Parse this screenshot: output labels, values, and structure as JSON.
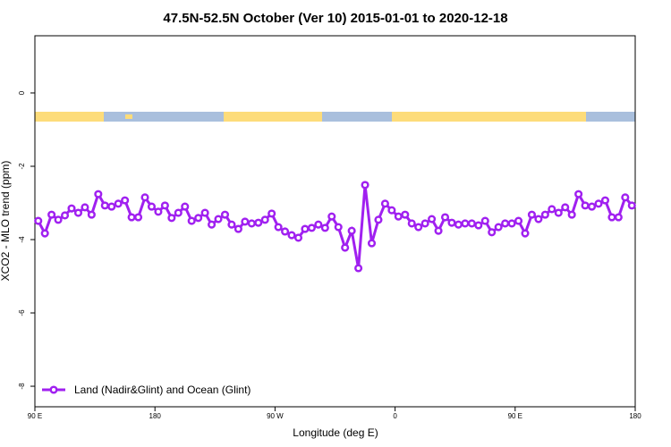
{
  "chart_data": {
    "type": "line",
    "title": "47.5N-52.5N October (Ver 10)   2015-01-01 to 2020-12-18",
    "x_label": "Longitude (deg E)",
    "y_label": "XCO2 - MLO trend (ppm)",
    "x": [
      92.5,
      97.5,
      102.5,
      107.5,
      112.5,
      117.5,
      122.5,
      127.5,
      132.5,
      137.5,
      142.5,
      147.5,
      152.5,
      157.5,
      162.5,
      167.5,
      172.5,
      177.5,
      182.5,
      187.5,
      192.5,
      197.5,
      202.5,
      207.5,
      212.5,
      217.5,
      222.5,
      227.5,
      232.5,
      237.5,
      242.5,
      247.5,
      252.5,
      257.5,
      262.5,
      267.5,
      272.5,
      277.5,
      282.5,
      287.5,
      292.5,
      297.5,
      302.5,
      307.5,
      312.5,
      317.5,
      322.5,
      327.5,
      332.5,
      337.5,
      342.5,
      347.5,
      352.5,
      357.5,
      362.5,
      367.5,
      372.5,
      377.5,
      382.5,
      387.5,
      392.5,
      397.5,
      402.5,
      407.5,
      412.5,
      417.5,
      422.5,
      427.5,
      432.5,
      437.5,
      442.5,
      447.5,
      452.5,
      457.5,
      462.5,
      467.5,
      472.5,
      477.5,
      482.5,
      487.5,
      492.5,
      497.5,
      502.5,
      507.5,
      512.5,
      517.5,
      522.5,
      527.5,
      532.5,
      537.5
    ],
    "series": [
      {
        "name": "Land (Nadir&Glint) and Ocean (Glint)",
        "color": "#a020f0",
        "values": [
          -3.49,
          -3.83,
          -3.32,
          -3.46,
          -3.34,
          -3.15,
          -3.27,
          -3.12,
          -3.32,
          -2.76,
          -3.07,
          -3.1,
          -3.02,
          -2.93,
          -3.39,
          -3.39,
          -2.85,
          -3.1,
          -3.24,
          -3.07,
          -3.41,
          -3.27,
          -3.1,
          -3.49,
          -3.41,
          -3.27,
          -3.59,
          -3.44,
          -3.32,
          -3.59,
          -3.71,
          -3.51,
          -3.56,
          -3.54,
          -3.46,
          -3.29,
          -3.66,
          -3.78,
          -3.88,
          -3.95,
          -3.71,
          -3.68,
          -3.59,
          -3.68,
          -3.37,
          -3.66,
          -4.22,
          -3.76,
          -4.78,
          -2.51,
          -4.1,
          -3.46,
          -3.02,
          -3.2,
          -3.37,
          -3.32,
          -3.56,
          -3.66,
          -3.56,
          -3.44,
          -3.76,
          -3.39,
          -3.54,
          -3.59,
          -3.56,
          -3.56,
          -3.61,
          -3.49,
          -3.8,
          -3.66,
          -3.56,
          -3.56,
          -3.49,
          -3.83,
          -3.32,
          -3.44,
          -3.32,
          -3.17,
          -3.27,
          -3.12,
          -3.32,
          -2.76,
          -3.07,
          -3.1,
          -3.02,
          -2.93,
          -3.39,
          -3.39,
          -2.85,
          -3.07
        ]
      }
    ],
    "xlim": [
      90,
      540
    ],
    "xticks": [
      {
        "value": 90,
        "label": "90 E"
      },
      180,
      {
        "value": 270,
        "label": "90 W"
      },
      {
        "value": 360,
        "label": "0"
      },
      {
        "value": 450,
        "label": "90 E"
      },
      {
        "value": 540,
        "label": "180"
      }
    ],
    "ylim": [
      -8.56,
      1.56
    ],
    "yticks": [
      0,
      -2,
      -4,
      -6,
      -8
    ],
    "legend": "bottom-left"
  }
}
